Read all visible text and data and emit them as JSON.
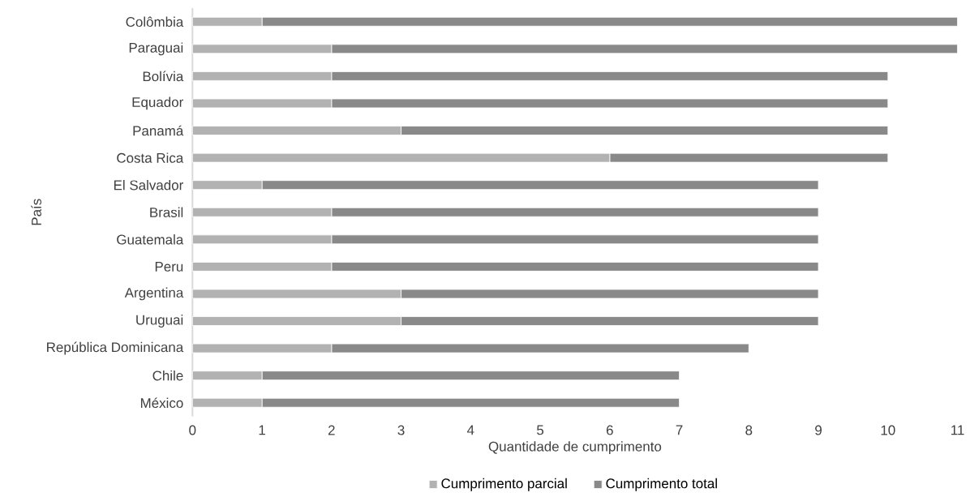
{
  "chart_data": {
    "type": "bar",
    "orientation": "horizontal",
    "stacked": true,
    "xlabel": "Quantidade de cumprimento",
    "ylabel": "País",
    "categories": [
      "Colômbia",
      "Paraguai",
      "Bolívia",
      "Equador",
      "Panamá",
      "Costa Rica",
      "El Salvador",
      "Brasil",
      "Guatemala",
      "Peru",
      "Argentina",
      "Uruguai",
      "República Dominicana",
      "Chile",
      "México"
    ],
    "series": [
      {
        "name": "Cumprimento parcial",
        "color": "#b2b2b2",
        "values": [
          1,
          2,
          2,
          2,
          3,
          6,
          1,
          2,
          2,
          2,
          3,
          3,
          2,
          1,
          1
        ]
      },
      {
        "name": "Cumprimento total",
        "color": "#898989",
        "values": [
          10,
          9,
          8,
          8,
          7,
          4,
          8,
          7,
          7,
          7,
          6,
          6,
          6,
          6,
          6
        ]
      }
    ],
    "xlim": [
      0,
      11
    ],
    "xticks": [
      0,
      1,
      2,
      3,
      4,
      5,
      6,
      7,
      8,
      9,
      10,
      11
    ],
    "legend": "bottom",
    "grid": false
  }
}
